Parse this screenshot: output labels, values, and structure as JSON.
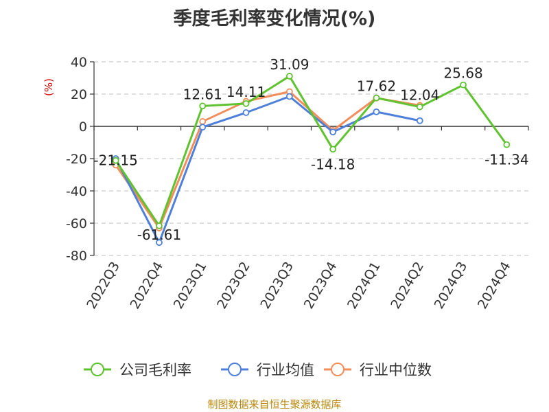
{
  "chart_data": {
    "type": "line",
    "title": "季度毛利率变化情况(%)",
    "ylabel": "(%)",
    "xlabel": "",
    "categories": [
      "2022Q3",
      "2022Q4",
      "2023Q1",
      "2023Q2",
      "2023Q3",
      "2023Q4",
      "2024Q1",
      "2024Q2",
      "2024Q3",
      "2024Q4"
    ],
    "ylim": [
      -80,
      40
    ],
    "yticks": [
      40,
      20,
      0,
      -20,
      -40,
      -60,
      -80
    ],
    "grid": true,
    "legend_position": "bottom",
    "series": [
      {
        "name": "公司毛利率",
        "color": "#5fc22f",
        "values": [
          -21.15,
          -61.61,
          12.61,
          14.11,
          31.09,
          -14.18,
          17.62,
          12.04,
          25.68,
          -11.34
        ],
        "labels": [
          "-21.15",
          "-61.61",
          "12.61",
          "14.11",
          "31.09",
          "-14.18",
          "17.62",
          "12.04",
          "25.68",
          "-11.34"
        ]
      },
      {
        "name": "行业均值",
        "color": "#4e7fd9",
        "values": [
          -20,
          -72,
          -0.5,
          8.5,
          18.5,
          -3.5,
          9,
          3.5,
          null,
          null
        ]
      },
      {
        "name": "行业中位数",
        "color": "#f28e5b",
        "values": [
          -24,
          -63,
          3,
          15.5,
          21.5,
          -2.5,
          17.5,
          13,
          null,
          null
        ]
      }
    ]
  },
  "source": "制图数据来自恒生聚源数据库"
}
